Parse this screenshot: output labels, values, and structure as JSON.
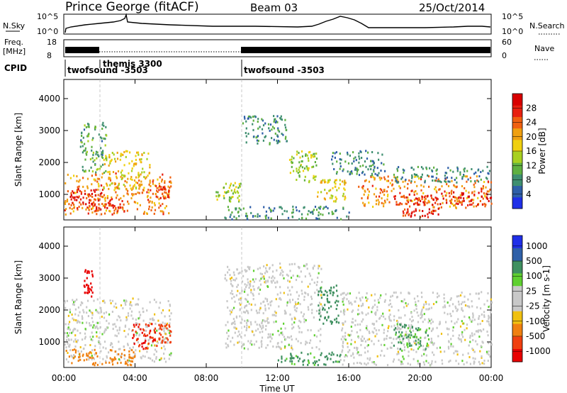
{
  "header": {
    "station": "Prince George (fitACF)",
    "beam": "Beam 03",
    "date": "25/Oct/2014"
  },
  "strip": {
    "nsky_label": "N.Sky",
    "nsky_hi": "10^5",
    "nsky_lo": "10^0",
    "nsearch_label": "N.Search",
    "nsearch_hi": "10^5",
    "nsearch_lo": "10^0",
    "freq_label": "Freq.",
    "freq_unit": "[MHz]",
    "freq_hi": "18",
    "freq_lo": "8",
    "nave_label": "Nave",
    "nave_hi": "60",
    "nave_lo": "0",
    "cpid_label": "CPID",
    "cpid_segments": [
      {
        "label": "twofsound -3503"
      },
      {
        "label": "themis 3300"
      },
      {
        "label": "twofsound -3503"
      }
    ]
  },
  "chart_data": [
    {
      "type": "heatmap",
      "panel": "power",
      "ylabel": "Slant Range [km]",
      "ylim": [
        200,
        4600
      ],
      "yticks": [
        1000,
        2000,
        3000,
        4000
      ],
      "colorbar_label": "Power [dB]",
      "colorbar_ticks": [
        4,
        8,
        12,
        16,
        20,
        24,
        28
      ],
      "colorbar_range": [
        0,
        32
      ],
      "colors": [
        "#1f2fe8",
        "#2f5fa8",
        "#3f8f70",
        "#5fb040",
        "#a8d020",
        "#f0d010",
        "#f0a010",
        "#f06010",
        "#e82010",
        "#d80000"
      ],
      "blobs": [
        {
          "t0": 0.0,
          "t1": 6.0,
          "r0": 400,
          "r1": 1700,
          "v": 22
        },
        {
          "t0": 0.3,
          "t1": 2.2,
          "r0": 600,
          "r1": 1200,
          "v": 28
        },
        {
          "t0": 1.6,
          "t1": 3.4,
          "r0": 400,
          "r1": 900,
          "v": 26
        },
        {
          "t0": 0.9,
          "t1": 2.4,
          "r0": 1700,
          "r1": 3300,
          "v": 10
        },
        {
          "t0": 2.2,
          "t1": 4.8,
          "r0": 1200,
          "r1": 2400,
          "v": 18
        },
        {
          "t0": 5.1,
          "t1": 5.9,
          "r0": 900,
          "r1": 1300,
          "v": 26
        },
        {
          "t0": 8.5,
          "t1": 10.0,
          "r0": 800,
          "r1": 1400,
          "v": 14
        },
        {
          "t0": 9.0,
          "t1": 16.0,
          "r0": 250,
          "r1": 650,
          "v": 8
        },
        {
          "t0": 10.0,
          "t1": 12.5,
          "r0": 2600,
          "r1": 3500,
          "v": 8
        },
        {
          "t0": 12.6,
          "t1": 14.2,
          "r0": 1400,
          "r1": 2400,
          "v": 14
        },
        {
          "t0": 14.2,
          "t1": 15.8,
          "r0": 800,
          "r1": 1500,
          "v": 18
        },
        {
          "t0": 15.0,
          "t1": 18.0,
          "r0": 1600,
          "r1": 2400,
          "v": 8
        },
        {
          "t0": 16.5,
          "t1": 24.0,
          "r0": 600,
          "r1": 1600,
          "v": 22
        },
        {
          "t0": 18.5,
          "t1": 24.0,
          "r0": 700,
          "r1": 1100,
          "v": 28
        },
        {
          "t0": 19.0,
          "t1": 21.0,
          "r0": 300,
          "r1": 600,
          "v": 27
        },
        {
          "t0": 18.5,
          "t1": 24.0,
          "r0": 1400,
          "r1": 1900,
          "v": 8
        }
      ]
    },
    {
      "type": "heatmap",
      "panel": "velocity",
      "xlabel": "Time UT",
      "ylabel": "Slant Range [km]",
      "ylim": [
        200,
        4600
      ],
      "yticks": [
        1000,
        2000,
        3000,
        4000
      ],
      "xlim": [
        0,
        24
      ],
      "xticks": [
        "00:00",
        "04:00",
        "08:00",
        "12:00",
        "16:00",
        "20:00",
        "00:00"
      ],
      "colorbar_label": "Velocity [m s-1]",
      "colorbar_ticks": [
        1000,
        500,
        100,
        25,
        -25,
        -100,
        -500,
        -1000
      ],
      "colors": [
        "#1f2fe8",
        "#2f60a8",
        "#3f9060",
        "#5fd030",
        "#c8c8c8",
        "#c8c8c8",
        "#f0c010",
        "#f08010",
        "#f04010",
        "#e80000"
      ],
      "blobs": [
        {
          "t0": 0.0,
          "t1": 6.0,
          "r0": 400,
          "r1": 2400,
          "v": 0
        },
        {
          "t0": 1.1,
          "t1": 1.6,
          "r0": 2400,
          "r1": 3300,
          "v": -1000
        },
        {
          "t0": 3.8,
          "t1": 5.2,
          "r0": 800,
          "r1": 1600,
          "v": -700
        },
        {
          "t0": 5.3,
          "t1": 6.0,
          "r0": 1000,
          "r1": 1600,
          "v": -600
        },
        {
          "t0": 0.0,
          "t1": 4.0,
          "r0": 300,
          "r1": 800,
          "v": -200
        },
        {
          "t0": 9.0,
          "t1": 14.5,
          "r0": 800,
          "r1": 3500,
          "v": 0
        },
        {
          "t0": 12.0,
          "t1": 15.5,
          "r0": 300,
          "r1": 700,
          "v": 120
        },
        {
          "t0": 14.2,
          "t1": 15.4,
          "r0": 1600,
          "r1": 2800,
          "v": 150
        },
        {
          "t0": 15.5,
          "t1": 24.0,
          "r0": 300,
          "r1": 2600,
          "v": 0
        },
        {
          "t0": 18.5,
          "t1": 20.5,
          "r0": 800,
          "r1": 1600,
          "v": 110
        }
      ]
    }
  ]
}
